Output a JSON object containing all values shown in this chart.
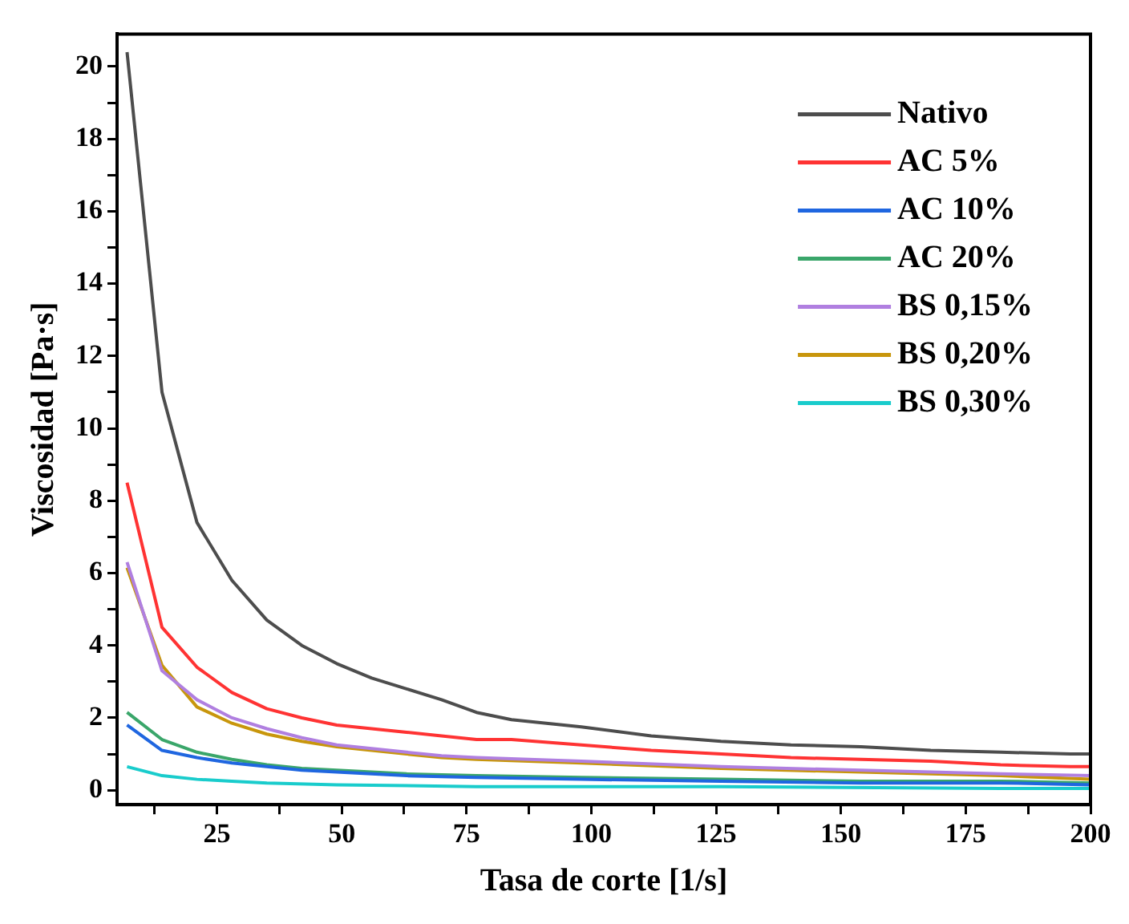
{
  "chart_data": {
    "type": "line",
    "xlabel": "Tasa de corte [1/s]",
    "ylabel": "Viscosidad [Pa·s]",
    "xlim": [
      5,
      200
    ],
    "ylim": [
      -0.4,
      20.9
    ],
    "xticks": [
      {
        "value": 12.5,
        "label": null
      },
      25,
      {
        "value": 37.5,
        "label": null
      },
      50,
      {
        "value": 62.5,
        "label": null
      },
      75,
      {
        "value": 87.5,
        "label": null
      },
      100,
      {
        "value": 112.5,
        "label": null
      },
      125,
      {
        "value": 137.5,
        "label": null
      },
      150,
      {
        "value": 162.5,
        "label": null
      },
      175,
      {
        "value": 187.5,
        "label": null
      },
      200
    ],
    "yticks": [
      0,
      {
        "value": 1,
        "label": null
      },
      2,
      {
        "value": 3,
        "label": null
      },
      4,
      {
        "value": 5,
        "label": null
      },
      6,
      {
        "value": 7,
        "label": null
      },
      8,
      {
        "value": 9,
        "label": null
      },
      10,
      {
        "value": 11,
        "label": null
      },
      12,
      {
        "value": 13,
        "label": null
      },
      14,
      {
        "value": 15,
        "label": null
      },
      16,
      {
        "value": 17,
        "label": null
      },
      18,
      {
        "value": 19,
        "label": null
      },
      20
    ],
    "grid": false,
    "legend": "top right",
    "marker": "none",
    "line_style": "solid",
    "series": [
      {
        "name": "Nativo",
        "color": "#4d4d4d",
        "x": [
          7,
          14,
          21,
          28,
          35,
          42,
          49,
          56,
          63,
          70,
          77,
          84,
          98,
          112,
          126,
          140,
          154,
          168,
          182,
          196,
          200
        ],
        "values": [
          20.4,
          11.0,
          7.4,
          5.8,
          4.7,
          4.0,
          3.5,
          3.1,
          2.8,
          2.5,
          2.15,
          1.95,
          1.75,
          1.5,
          1.35,
          1.25,
          1.2,
          1.1,
          1.05,
          1.0,
          1.0
        ]
      },
      {
        "name": "AC 5%",
        "color": "#ff3333",
        "x": [
          7,
          14,
          21,
          28,
          35,
          42,
          49,
          56,
          63,
          70,
          77,
          84,
          98,
          112,
          126,
          140,
          154,
          168,
          182,
          196,
          200
        ],
        "values": [
          8.5,
          4.5,
          3.4,
          2.7,
          2.25,
          2.0,
          1.8,
          1.7,
          1.6,
          1.5,
          1.4,
          1.4,
          1.25,
          1.1,
          1.0,
          0.9,
          0.85,
          0.8,
          0.7,
          0.65,
          0.65
        ]
      },
      {
        "name": "AC 10%",
        "color": "#1f66e0",
        "x": [
          7,
          14,
          21,
          28,
          35,
          42,
          49,
          63,
          77,
          98,
          126,
          154,
          182,
          200
        ],
        "values": [
          1.8,
          1.1,
          0.9,
          0.75,
          0.65,
          0.55,
          0.5,
          0.4,
          0.35,
          0.3,
          0.25,
          0.2,
          0.2,
          0.15
        ]
      },
      {
        "name": "AC 20%",
        "color": "#3aa66a",
        "x": [
          7,
          14,
          21,
          28,
          35,
          42,
          49,
          63,
          77,
          98,
          126,
          154,
          182,
          200
        ],
        "values": [
          2.15,
          1.4,
          1.05,
          0.85,
          0.7,
          0.6,
          0.55,
          0.45,
          0.4,
          0.35,
          0.3,
          0.25,
          0.25,
          0.2
        ]
      },
      {
        "name": "BS 0,15%",
        "color": "#b07fe0",
        "x": [
          7,
          14,
          21,
          28,
          35,
          42,
          49,
          56,
          63,
          70,
          77,
          98,
          126,
          154,
          182,
          200
        ],
        "values": [
          6.3,
          3.3,
          2.5,
          2.0,
          1.7,
          1.45,
          1.25,
          1.15,
          1.05,
          0.95,
          0.9,
          0.8,
          0.65,
          0.55,
          0.45,
          0.4
        ]
      },
      {
        "name": "BS 0,20%",
        "color": "#c8960c",
        "x": [
          7,
          14,
          21,
          28,
          35,
          42,
          49,
          56,
          63,
          70,
          77,
          98,
          126,
          154,
          182,
          200
        ],
        "values": [
          6.15,
          3.45,
          2.3,
          1.85,
          1.55,
          1.35,
          1.2,
          1.1,
          1.0,
          0.9,
          0.85,
          0.75,
          0.6,
          0.5,
          0.4,
          0.3
        ]
      },
      {
        "name": "BS 0,30%",
        "color": "#19cccc",
        "x": [
          7,
          14,
          21,
          28,
          35,
          49,
          77,
          126,
          182,
          200
        ],
        "values": [
          0.65,
          0.4,
          0.3,
          0.25,
          0.2,
          0.15,
          0.1,
          0.1,
          0.05,
          0.05
        ]
      }
    ]
  }
}
